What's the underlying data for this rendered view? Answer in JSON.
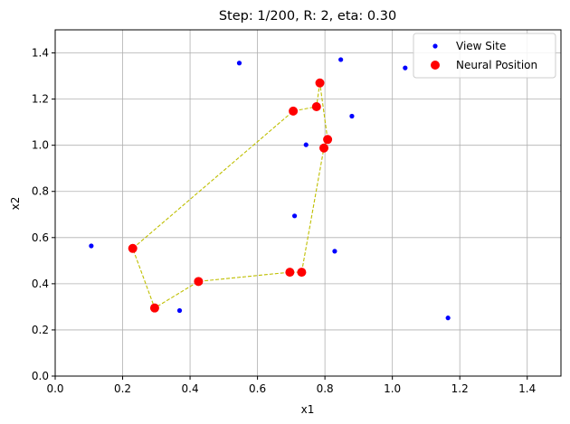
{
  "chart_data": {
    "type": "scatter",
    "title": "Step: 1/200, R: 2, eta: 0.30",
    "xlabel": "x1",
    "ylabel": "x2",
    "xlim": [
      0.0,
      1.5
    ],
    "ylim": [
      0.0,
      1.5
    ],
    "xticks": [
      "0.0",
      "0.2",
      "0.4",
      "0.6",
      "0.8",
      "1.0",
      "1.2",
      "1.4"
    ],
    "yticks": [
      "0.0",
      "0.2",
      "0.4",
      "0.6",
      "0.8",
      "1.0",
      "1.2",
      "1.4"
    ],
    "grid": true,
    "legend_position": "top-right",
    "colors": {
      "view_site": "#0000ff",
      "neural_position": "#ff0000",
      "path": "#bfbf00",
      "grid": "#b0b0b0"
    },
    "series": [
      {
        "name": "View Site",
        "marker": "dot",
        "x": [
          0.546,
          0.847,
          1.038,
          0.88,
          0.744,
          0.71,
          0.829,
          0.107,
          0.369,
          1.165
        ],
        "y": [
          1.356,
          1.371,
          1.335,
          1.126,
          1.002,
          0.694,
          0.541,
          0.564,
          0.284,
          0.252
        ]
      },
      {
        "name": "Neural Position",
        "marker": "circle",
        "path": "dashed",
        "closed": true,
        "x": [
          0.785,
          0.775,
          0.706,
          0.23,
          0.295,
          0.425,
          0.696,
          0.731,
          0.797,
          0.808,
          0.785
        ],
        "y": [
          1.27,
          1.167,
          1.148,
          0.553,
          0.295,
          0.41,
          0.45,
          0.45,
          0.988,
          1.025,
          1.27
        ]
      }
    ]
  }
}
